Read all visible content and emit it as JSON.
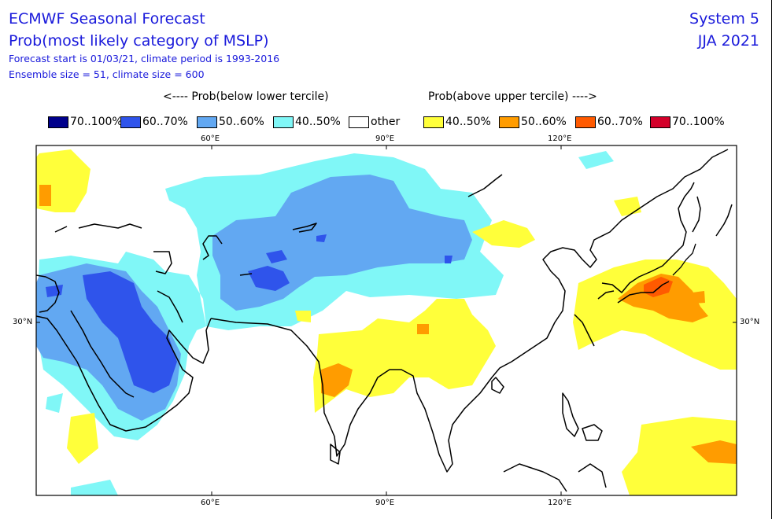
{
  "header": {
    "title": "ECMWF Seasonal Forecast",
    "subtitle": "Prob(most likely category of MSLP)",
    "forecast_line": "Forecast start is 01/03/21, climate period is 1993-2016",
    "ensemble_line": "Ensemble size = 51, climate size = 600",
    "system": "System 5",
    "period": "JJA 2021"
  },
  "legend": {
    "below_header": "<---- Prob(below lower tercile)",
    "above_header": "Prob(above upper tercile) ---->",
    "items": [
      {
        "label": "70..100%",
        "color": "#00008b"
      },
      {
        "label": "60..70%",
        "color": "#2f54eb"
      },
      {
        "label": "50..60%",
        "color": "#62a8f2"
      },
      {
        "label": "40..50%",
        "color": "#80f7f7"
      },
      {
        "label": "other",
        "color": "#ffffff"
      },
      {
        "label": "40..50%",
        "color": "#ffff3a"
      },
      {
        "label": "50..60%",
        "color": "#ff9c00"
      },
      {
        "label": "60..70%",
        "color": "#ff5a00"
      },
      {
        "label": "70..100%",
        "color": "#d4002a"
      }
    ]
  },
  "map": {
    "top_ticks": [
      "60°E",
      "90°E",
      "120°E"
    ],
    "bottom_ticks": [
      "60°E",
      "90°E",
      "120°E"
    ],
    "left_lat": "30°N",
    "right_lat": "30°N"
  }
}
